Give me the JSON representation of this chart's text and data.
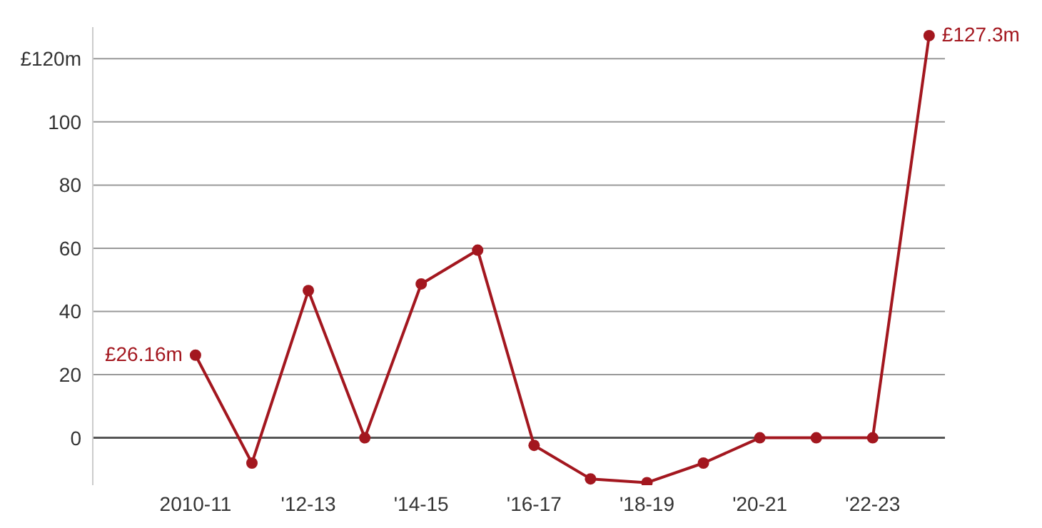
{
  "chart_data": {
    "type": "line",
    "categories": [
      "2010-11",
      null,
      "'12-13",
      null,
      "'14-15",
      null,
      "'16-17",
      null,
      "'18-19",
      null,
      "'20-21",
      null,
      "'22-23",
      null
    ],
    "series": [
      {
        "color": "#a3171f",
        "values": [
          26.16,
          -8,
          46.6,
          0,
          48.7,
          59.4,
          -2.4,
          -13,
          -14.2,
          -8,
          0,
          0,
          0,
          127.3
        ],
        "value_labels": [
          "£26.16m",
          null,
          null,
          null,
          null,
          null,
          null,
          null,
          null,
          null,
          null,
          null,
          null,
          "£127.3m"
        ]
      }
    ],
    "ylim": [
      -15,
      130
    ],
    "yticks": [
      0,
      20,
      40,
      60,
      80,
      100,
      {
        "value": 120,
        "label": "£120m"
      }
    ],
    "grid": "y",
    "marker": "circle",
    "ref_lines": [
      {
        "axis": "y",
        "value": 0,
        "color": "#555555"
      }
    ]
  }
}
